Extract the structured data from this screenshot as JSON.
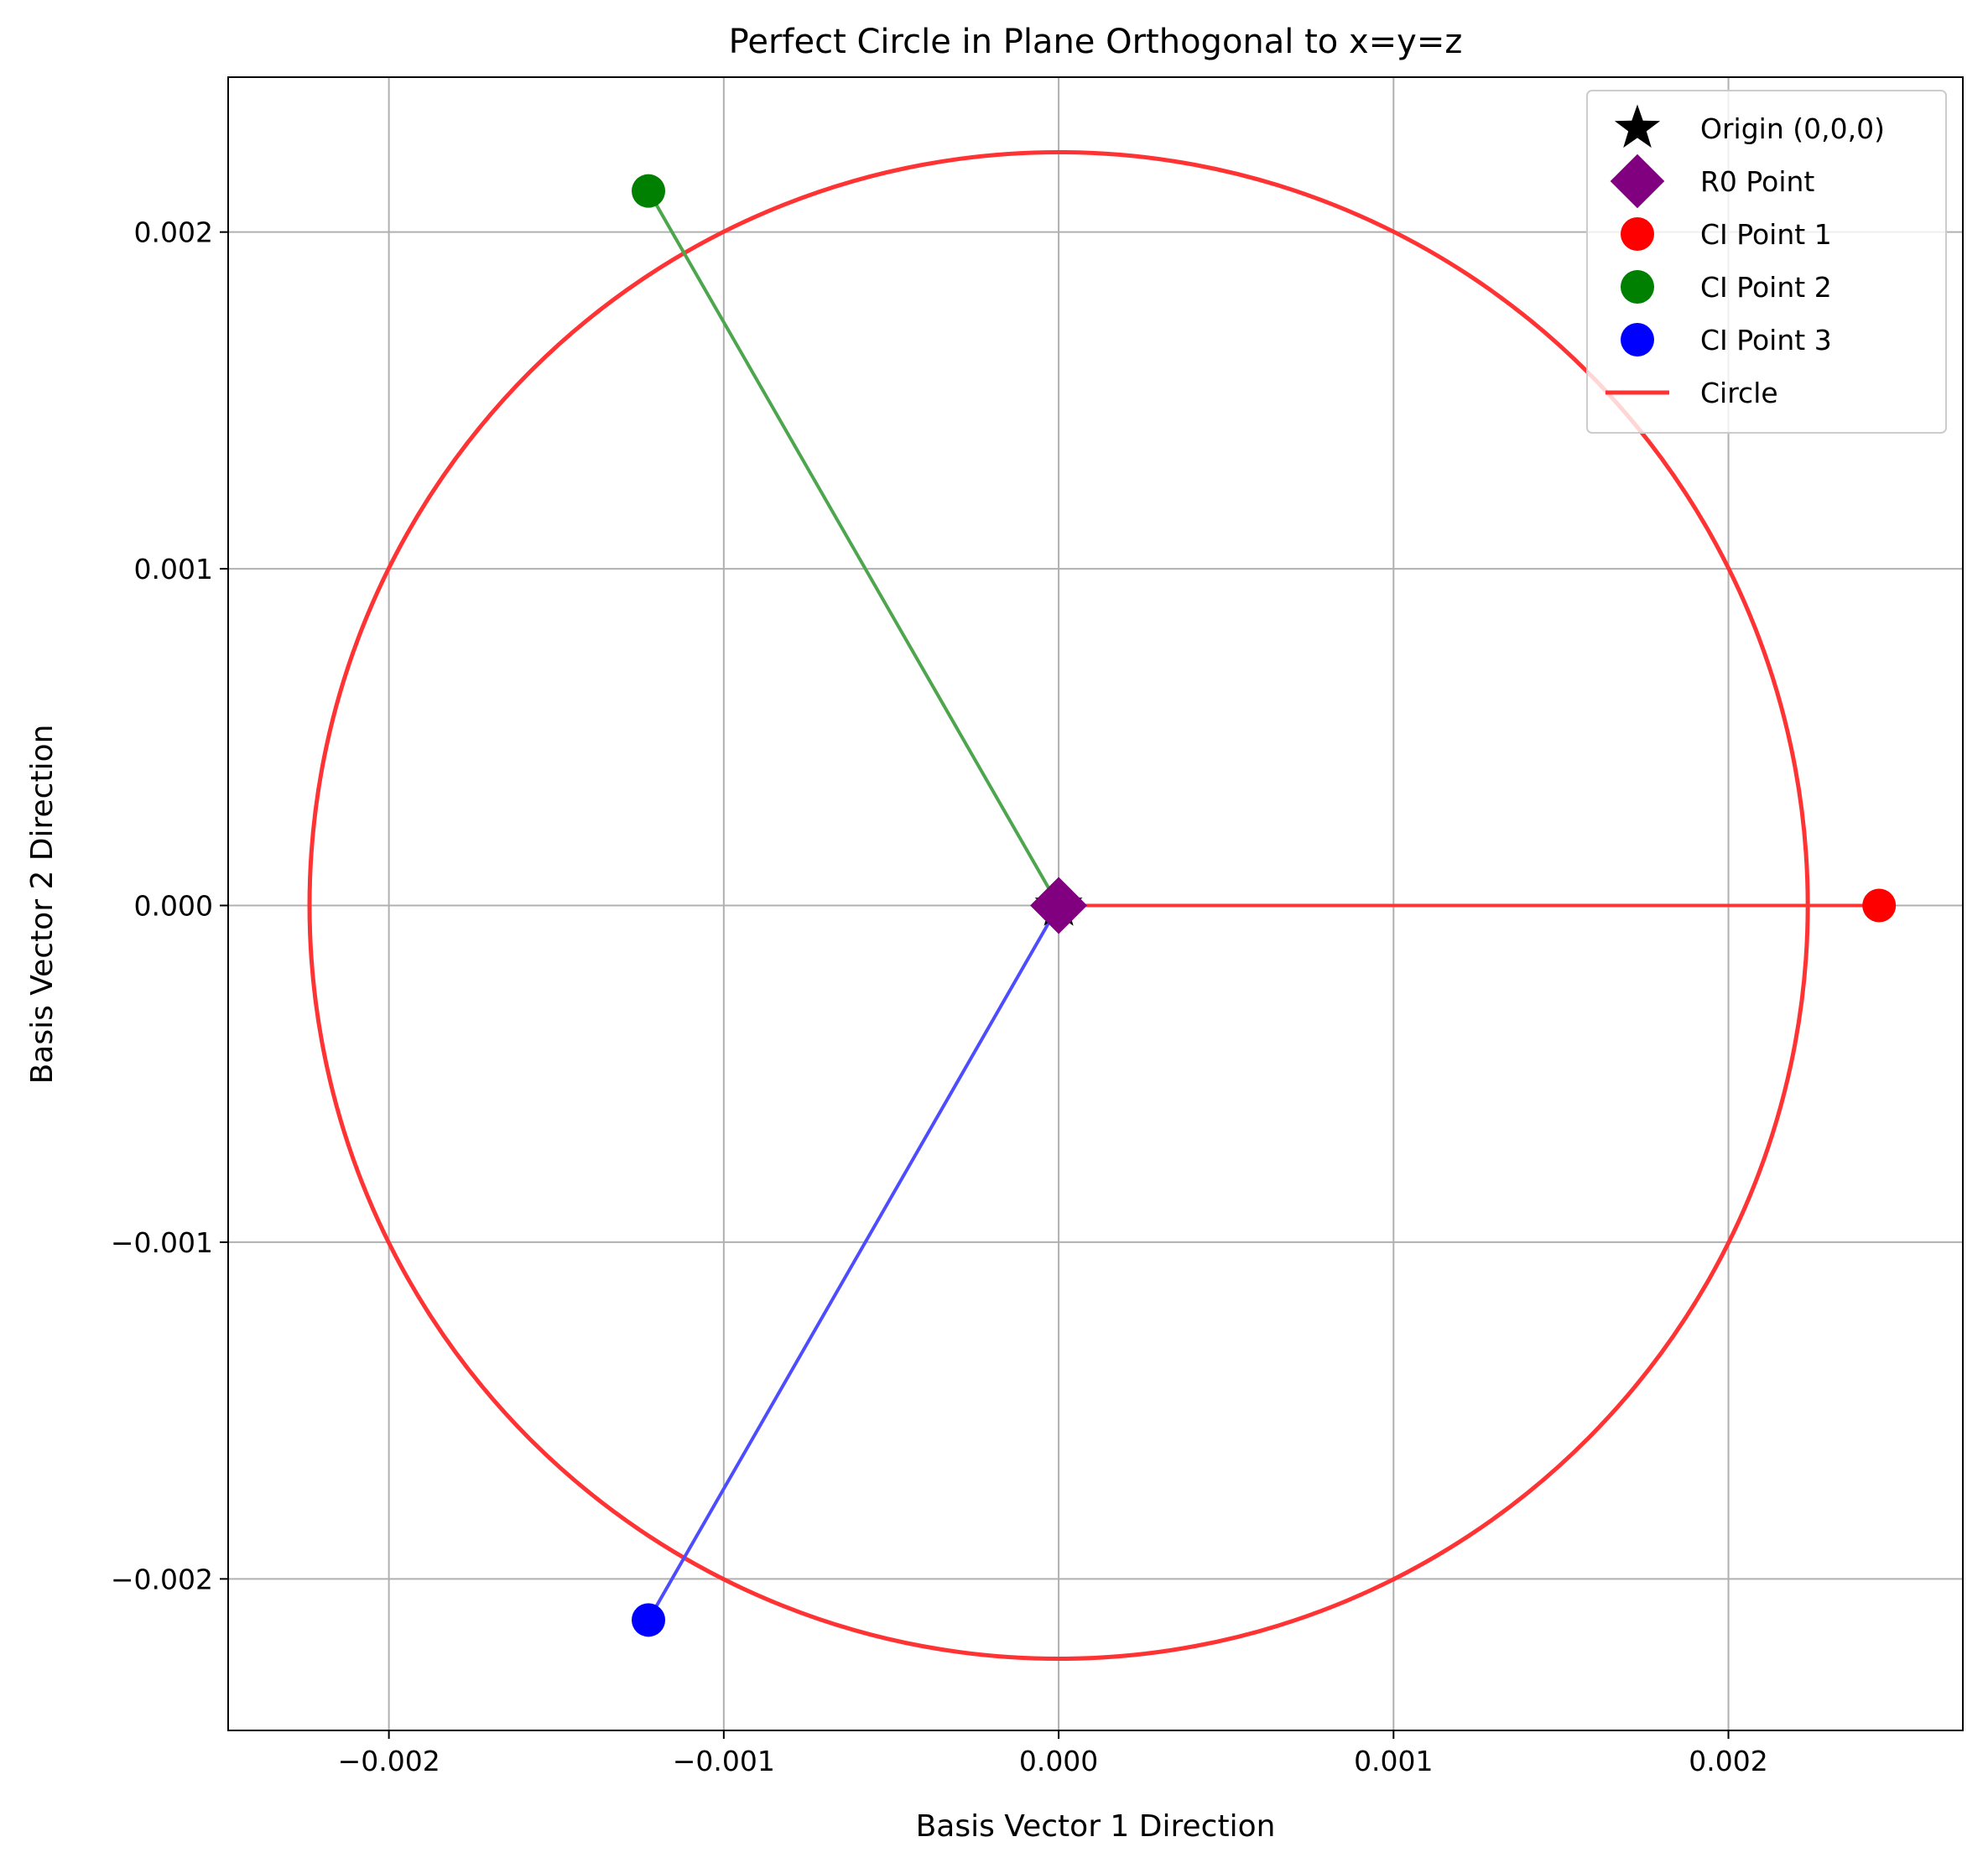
{
  "chart_data": {
    "type": "scatter",
    "title": "Perfect Circle in Plane Orthogonal to x=y=z",
    "xlabel": "Basis Vector 1 Direction",
    "ylabel": "Basis Vector 2 Direction",
    "xlim": [
      -0.00248,
      0.0027
    ],
    "ylim": [
      -0.00245,
      0.00246
    ],
    "xticks": [
      -0.002,
      -0.001,
      0.0,
      0.001,
      0.002
    ],
    "xtick_labels": [
      "−0.002",
      "−0.001",
      "0.000",
      "0.001",
      "0.002"
    ],
    "yticks": [
      -0.002,
      -0.001,
      0.0,
      0.001,
      0.002
    ],
    "ytick_labels": [
      "−0.002",
      "−0.001",
      "0.000",
      "0.001",
      "0.002"
    ],
    "grid": true,
    "legend_position": "top-right",
    "circle": {
      "name": "Circle",
      "center": [
        0.0,
        0.0
      ],
      "radius": 0.002237,
      "color": "#ff3333"
    },
    "points": [
      {
        "name": "Origin (0,0,0)",
        "x": 0.0,
        "y": 0.0,
        "marker": "star",
        "color": "#000000"
      },
      {
        "name": "R0 Point",
        "x": 0.0,
        "y": 0.0,
        "marker": "diamond",
        "color": "#800080"
      },
      {
        "name": "CI Point 1",
        "x": 0.00245,
        "y": 0.0,
        "marker": "circle",
        "color": "#ff0000"
      },
      {
        "name": "CI Point 2",
        "x": -0.001225,
        "y": 0.002122,
        "marker": "circle",
        "color": "#008000"
      },
      {
        "name": "CI Point 3",
        "x": -0.001225,
        "y": -0.002122,
        "marker": "circle",
        "color": "#0000ff"
      }
    ],
    "lines": [
      {
        "from": [
          0.0,
          0.0
        ],
        "to": [
          0.00245,
          0.0
        ],
        "color": "#ff3333"
      },
      {
        "from": [
          0.0,
          0.0
        ],
        "to": [
          -0.001225,
          0.002122
        ],
        "color": "#4da64d"
      },
      {
        "from": [
          0.0,
          0.0
        ],
        "to": [
          -0.001225,
          -0.002122
        ],
        "color": "#4d4dff"
      }
    ],
    "legend": [
      {
        "label": "Origin (0,0,0)",
        "marker": "star",
        "color": "#000000"
      },
      {
        "label": "R0 Point",
        "marker": "diamond",
        "color": "#800080"
      },
      {
        "label": "CI Point 1",
        "marker": "circle",
        "color": "#ff0000"
      },
      {
        "label": "CI Point 2",
        "marker": "circle",
        "color": "#008000"
      },
      {
        "label": "CI Point 3",
        "marker": "circle",
        "color": "#0000ff"
      },
      {
        "label": "Circle",
        "marker": "line",
        "color": "#ff3333"
      }
    ]
  }
}
